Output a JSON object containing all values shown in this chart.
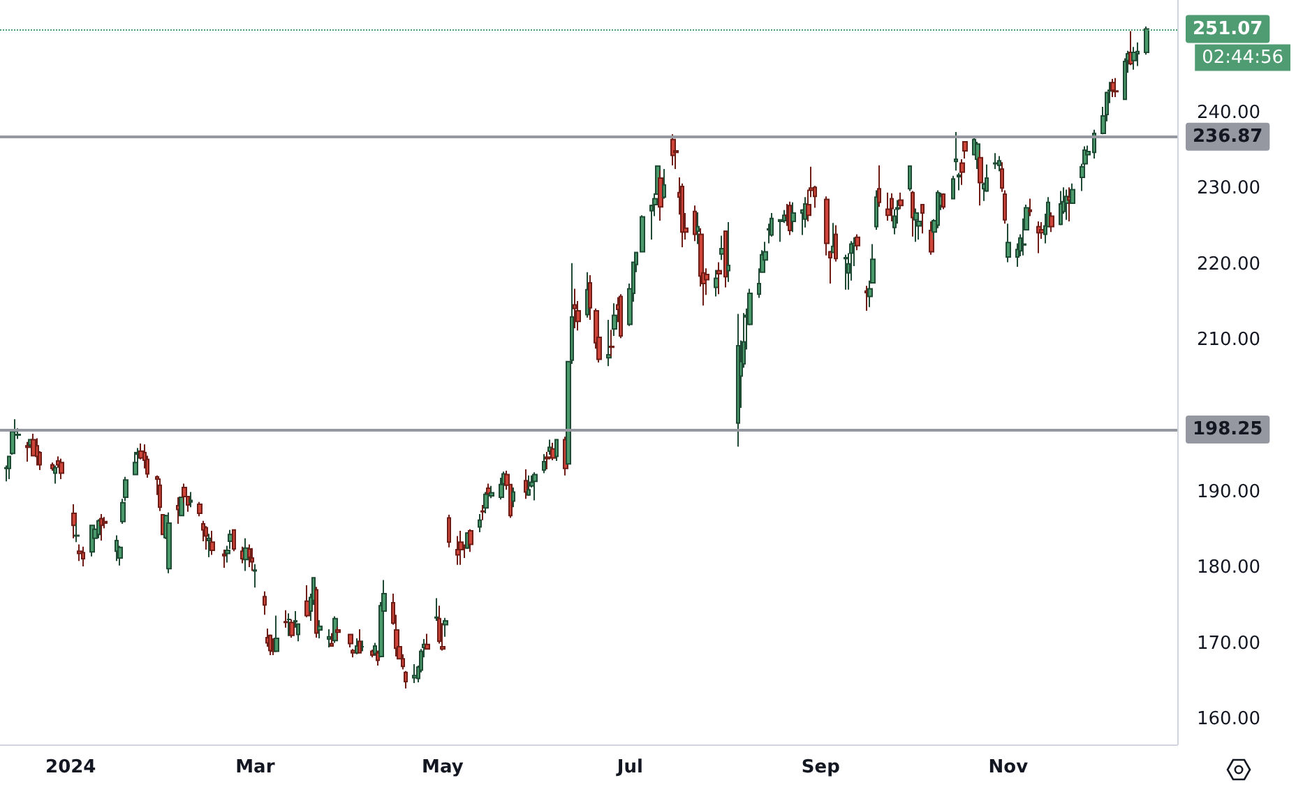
{
  "chart_data": {
    "type": "candlestick",
    "x": [
      "2023-12-11",
      "2023-12-12",
      "2023-12-13",
      "2023-12-14",
      "2023-12-15",
      "2023-12-18",
      "2023-12-19",
      "2023-12-20",
      "2023-12-21",
      "2023-12-22",
      "2023-12-26",
      "2023-12-27",
      "2023-12-28",
      "2023-12-29",
      "2024-01-02",
      "2024-01-03",
      "2024-01-04",
      "2024-01-05",
      "2024-01-08",
      "2024-01-09",
      "2024-01-10",
      "2024-01-11",
      "2024-01-12",
      "2024-01-16",
      "2024-01-17",
      "2024-01-18",
      "2024-01-19",
      "2024-01-22",
      "2024-01-23",
      "2024-01-24",
      "2024-01-25",
      "2024-01-26",
      "2024-01-29",
      "2024-01-30",
      "2024-01-31",
      "2024-02-01",
      "2024-02-02",
      "2024-02-05",
      "2024-02-06",
      "2024-02-07",
      "2024-02-08",
      "2024-02-09",
      "2024-02-12",
      "2024-02-13",
      "2024-02-14",
      "2024-02-15",
      "2024-02-16",
      "2024-02-20",
      "2024-02-21",
      "2024-02-22",
      "2024-02-23",
      "2024-02-26",
      "2024-02-27",
      "2024-02-28",
      "2024-02-29",
      "2024-03-01",
      "2024-03-04",
      "2024-03-05",
      "2024-03-06",
      "2024-03-07",
      "2024-03-08",
      "2024-03-11",
      "2024-03-12",
      "2024-03-13",
      "2024-03-14",
      "2024-03-15",
      "2024-03-18",
      "2024-03-19",
      "2024-03-20",
      "2024-03-21",
      "2024-03-22",
      "2024-03-25",
      "2024-03-26",
      "2024-03-27",
      "2024-03-28",
      "2024-04-01",
      "2024-04-02",
      "2024-04-03",
      "2024-04-04",
      "2024-04-05",
      "2024-04-08",
      "2024-04-09",
      "2024-04-10",
      "2024-04-11",
      "2024-04-12",
      "2024-04-15",
      "2024-04-16",
      "2024-04-17",
      "2024-04-18",
      "2024-04-19",
      "2024-04-22",
      "2024-04-23",
      "2024-04-24",
      "2024-04-25",
      "2024-04-26",
      "2024-04-29",
      "2024-04-30",
      "2024-05-01",
      "2024-05-02",
      "2024-05-03",
      "2024-05-06",
      "2024-05-07",
      "2024-05-08",
      "2024-05-09",
      "2024-05-10",
      "2024-05-13",
      "2024-05-14",
      "2024-05-15",
      "2024-05-16",
      "2024-05-17",
      "2024-05-20",
      "2024-05-21",
      "2024-05-22",
      "2024-05-23",
      "2024-05-24",
      "2024-05-28",
      "2024-05-29",
      "2024-05-30",
      "2024-05-31",
      "2024-06-03",
      "2024-06-04",
      "2024-06-05",
      "2024-06-06",
      "2024-06-07",
      "2024-06-10",
      "2024-06-11",
      "2024-06-12",
      "2024-06-13",
      "2024-06-14",
      "2024-06-17",
      "2024-06-18",
      "2024-06-20",
      "2024-06-21",
      "2024-06-24",
      "2024-06-25",
      "2024-06-26",
      "2024-06-27",
      "2024-06-28",
      "2024-07-01",
      "2024-07-02",
      "2024-07-03",
      "2024-07-05",
      "2024-07-08",
      "2024-07-09",
      "2024-07-10",
      "2024-07-11",
      "2024-07-12",
      "2024-07-15",
      "2024-07-16",
      "2024-07-17",
      "2024-07-18",
      "2024-07-19",
      "2024-07-22",
      "2024-07-23",
      "2024-07-24",
      "2024-07-25",
      "2024-07-26",
      "2024-07-29",
      "2024-07-30",
      "2024-07-31",
      "2024-08-01",
      "2024-08-02",
      "2024-08-05",
      "2024-08-06",
      "2024-08-07",
      "2024-08-08",
      "2024-08-09",
      "2024-08-12",
      "2024-08-13",
      "2024-08-14",
      "2024-08-15",
      "2024-08-16",
      "2024-08-19",
      "2024-08-20",
      "2024-08-21",
      "2024-08-22",
      "2024-08-23",
      "2024-08-26",
      "2024-08-27",
      "2024-08-28",
      "2024-08-29",
      "2024-08-30",
      "2024-09-03",
      "2024-09-04",
      "2024-09-05",
      "2024-09-06",
      "2024-09-09",
      "2024-09-10",
      "2024-09-11",
      "2024-09-12",
      "2024-09-13",
      "2024-09-16",
      "2024-09-17",
      "2024-09-18",
      "2024-09-19",
      "2024-09-20",
      "2024-09-23",
      "2024-09-24",
      "2024-09-25",
      "2024-09-26",
      "2024-09-27",
      "2024-09-30",
      "2024-10-01",
      "2024-10-02",
      "2024-10-03",
      "2024-10-04",
      "2024-10-07",
      "2024-10-08",
      "2024-10-09",
      "2024-10-10",
      "2024-10-11",
      "2024-10-14",
      "2024-10-15",
      "2024-10-16",
      "2024-10-17",
      "2024-10-18",
      "2024-10-21",
      "2024-10-22",
      "2024-10-23",
      "2024-10-24",
      "2024-10-25",
      "2024-10-28",
      "2024-10-29",
      "2024-10-30",
      "2024-10-31",
      "2024-11-01",
      "2024-11-04",
      "2024-11-05",
      "2024-11-06",
      "2024-11-07",
      "2024-11-08",
      "2024-11-11",
      "2024-11-12",
      "2024-11-13",
      "2024-11-14",
      "2024-11-15",
      "2024-11-18",
      "2024-11-19",
      "2024-11-20",
      "2024-11-21",
      "2024-11-22",
      "2024-11-25",
      "2024-11-26",
      "2024-11-27",
      "2024-11-29",
      "2024-12-02",
      "2024-12-03",
      "2024-12-04",
      "2024-12-05",
      "2024-12-06",
      "2024-12-09",
      "2024-12-10",
      "2024-12-11",
      "2024-12-12",
      "2024-12-13",
      "2024-12-16"
    ],
    "ohlc": [
      [
        193.1,
        193.5,
        191.4,
        193.2
      ],
      [
        193.1,
        194.7,
        191.7,
        194.7
      ],
      [
        195.1,
        198.0,
        194.9,
        198.0
      ],
      [
        198.0,
        199.6,
        196.2,
        198.1
      ],
      [
        197.5,
        198.4,
        197.0,
        197.6
      ],
      [
        196.1,
        196.6,
        194.0,
        195.9
      ],
      [
        196.2,
        196.9,
        195.9,
        196.9
      ],
      [
        196.9,
        197.7,
        194.8,
        194.8
      ],
      [
        196.1,
        197.1,
        193.5,
        194.7
      ],
      [
        195.2,
        195.4,
        192.9,
        193.6
      ],
      [
        193.6,
        193.9,
        192.8,
        193.1
      ],
      [
        192.5,
        193.5,
        191.1,
        193.2
      ],
      [
        194.1,
        194.7,
        193.2,
        193.6
      ],
      [
        193.9,
        194.4,
        191.7,
        192.5
      ],
      [
        187.2,
        188.4,
        183.9,
        185.6
      ],
      [
        184.2,
        185.9,
        183.4,
        184.3
      ],
      [
        182.2,
        183.1,
        180.9,
        181.9
      ],
      [
        182.0,
        182.8,
        180.2,
        181.2
      ],
      [
        182.1,
        185.6,
        181.5,
        185.6
      ],
      [
        183.9,
        185.2,
        182.7,
        185.1
      ],
      [
        184.4,
        186.4,
        183.9,
        186.2
      ],
      [
        186.5,
        187.1,
        183.6,
        185.6
      ],
      [
        186.1,
        186.7,
        185.2,
        185.9
      ],
      [
        182.2,
        184.3,
        180.9,
        183.6
      ],
      [
        181.3,
        182.9,
        180.3,
        182.7
      ],
      [
        186.1,
        189.1,
        185.8,
        188.6
      ],
      [
        189.3,
        192.0,
        188.8,
        191.6
      ],
      [
        192.3,
        195.3,
        192.3,
        193.9
      ],
      [
        195.0,
        195.8,
        193.8,
        195.2
      ],
      [
        195.4,
        196.4,
        194.3,
        194.5
      ],
      [
        195.2,
        196.3,
        193.1,
        194.2
      ],
      [
        194.3,
        194.8,
        191.9,
        192.4
      ],
      [
        192.0,
        192.2,
        189.6,
        191.7
      ],
      [
        190.9,
        191.8,
        187.5,
        188.0
      ],
      [
        187.0,
        187.1,
        184.4,
        184.4
      ],
      [
        184.0,
        187.0,
        183.8,
        186.9
      ],
      [
        179.9,
        187.3,
        179.3,
        185.9
      ],
      [
        188.2,
        189.3,
        185.8,
        187.7
      ],
      [
        186.9,
        189.3,
        186.8,
        189.3
      ],
      [
        190.6,
        191.1,
        188.6,
        189.4
      ],
      [
        189.4,
        189.5,
        187.4,
        188.3
      ],
      [
        188.7,
        190.0,
        188.0,
        188.9
      ],
      [
        188.4,
        188.7,
        186.8,
        187.2
      ],
      [
        185.8,
        186.2,
        183.5,
        185.0
      ],
      [
        185.3,
        185.5,
        182.4,
        184.2
      ],
      [
        183.6,
        184.5,
        181.4,
        183.9
      ],
      [
        183.4,
        184.9,
        181.7,
        182.3
      ],
      [
        181.8,
        182.4,
        180.0,
        181.6
      ],
      [
        181.9,
        182.9,
        180.7,
        182.3
      ],
      [
        183.5,
        185.0,
        182.5,
        184.4
      ],
      [
        185.0,
        185.0,
        182.2,
        182.5
      ],
      [
        182.2,
        182.8,
        180.6,
        181.2
      ],
      [
        181.1,
        183.9,
        179.6,
        182.6
      ],
      [
        182.5,
        183.1,
        180.1,
        181.4
      ],
      [
        181.3,
        182.6,
        179.6,
        180.8
      ],
      [
        179.6,
        180.5,
        177.4,
        179.7
      ],
      [
        176.2,
        176.9,
        173.8,
        175.1
      ],
      [
        170.8,
        172.0,
        169.6,
        170.1
      ],
      [
        171.1,
        171.2,
        168.5,
        169.1
      ],
      [
        169.2,
        170.7,
        168.5,
        169.0
      ],
      [
        169.0,
        173.7,
        168.9,
        170.7
      ],
      [
        172.9,
        174.4,
        172.1,
        172.8
      ],
      [
        173.2,
        174.0,
        171.0,
        173.2
      ],
      [
        172.8,
        173.2,
        170.8,
        171.1
      ],
      [
        172.9,
        174.3,
        172.1,
        173.0
      ],
      [
        171.2,
        172.6,
        170.3,
        172.6
      ],
      [
        175.6,
        177.7,
        173.5,
        173.7
      ],
      [
        174.3,
        176.6,
        173.0,
        176.1
      ],
      [
        175.7,
        178.7,
        175.1,
        178.7
      ],
      [
        177.1,
        177.5,
        170.8,
        171.4
      ],
      [
        171.8,
        173.1,
        170.7,
        172.3
      ],
      [
        170.6,
        171.9,
        169.5,
        170.9
      ],
      [
        170.0,
        171.4,
        169.6,
        169.7
      ],
      [
        170.4,
        173.6,
        170.1,
        173.3
      ],
      [
        171.8,
        172.2,
        170.5,
        171.5
      ],
      [
        171.2,
        171.3,
        169.5,
        170.0
      ],
      [
        169.1,
        169.3,
        168.2,
        168.8
      ],
      [
        168.8,
        170.7,
        168.6,
        169.7
      ],
      [
        170.3,
        171.9,
        168.8,
        168.8
      ],
      [
        169.6,
        170.4,
        169.0,
        169.6
      ],
      [
        169.0,
        169.2,
        168.2,
        168.5
      ],
      [
        168.7,
        170.1,
        168.4,
        169.7
      ],
      [
        168.8,
        169.1,
        167.1,
        167.8
      ],
      [
        168.3,
        175.5,
        168.2,
        175.0
      ],
      [
        174.3,
        178.4,
        174.2,
        176.6
      ],
      [
        175.4,
        176.6,
        172.5,
        172.7
      ],
      [
        171.8,
        173.8,
        168.3,
        169.4
      ],
      [
        169.6,
        170.7,
        168.0,
        168.0
      ],
      [
        168.0,
        168.6,
        166.6,
        167.0
      ],
      [
        166.2,
        166.4,
        164.1,
        165.0
      ],
      [
        165.5,
        167.3,
        164.8,
        165.8
      ],
      [
        165.4,
        167.1,
        164.9,
        166.9
      ],
      [
        166.5,
        169.3,
        166.2,
        169.0
      ],
      [
        169.5,
        170.6,
        168.2,
        169.9
      ],
      [
        169.9,
        171.3,
        169.2,
        169.3
      ],
      [
        173.4,
        176.0,
        173.0,
        173.5
      ],
      [
        173.3,
        175.0,
        170.0,
        170.3
      ],
      [
        169.6,
        172.7,
        169.1,
        169.3
      ],
      [
        172.5,
        173.4,
        170.9,
        173.0
      ],
      [
        186.6,
        187.0,
        182.7,
        183.4
      ],
      [
        182.4,
        184.2,
        180.4,
        181.7
      ],
      [
        183.4,
        184.9,
        180.4,
        182.4
      ],
      [
        182.9,
        183.1,
        181.3,
        182.7
      ],
      [
        182.6,
        184.7,
        182.5,
        184.6
      ],
      [
        184.9,
        185.1,
        182.1,
        183.1
      ],
      [
        185.4,
        187.1,
        184.7,
        186.3
      ],
      [
        187.5,
        188.3,
        186.3,
        187.4
      ],
      [
        187.9,
        190.0,
        187.2,
        189.7
      ],
      [
        190.5,
        191.1,
        189.7,
        189.8
      ],
      [
        189.5,
        190.8,
        189.2,
        189.9
      ],
      [
        189.3,
        191.9,
        189.0,
        191.0
      ],
      [
        191.1,
        192.7,
        190.9,
        192.4
      ],
      [
        192.3,
        192.8,
        190.3,
        190.9
      ],
      [
        191.0,
        191.0,
        186.6,
        186.9
      ],
      [
        188.8,
        190.6,
        188.0,
        190.0
      ],
      [
        191.5,
        193.0,
        189.1,
        190.0
      ],
      [
        189.6,
        192.2,
        189.5,
        190.3
      ],
      [
        190.8,
        192.2,
        190.6,
        191.3
      ],
      [
        191.4,
        192.6,
        188.9,
        192.3
      ],
      [
        192.9,
        195.0,
        192.5,
        194.0
      ],
      [
        194.6,
        195.3,
        193.0,
        194.4
      ],
      [
        195.4,
        196.9,
        194.9,
        195.9
      ],
      [
        195.7,
        196.5,
        194.2,
        194.5
      ],
      [
        194.7,
        196.9,
        194.1,
        196.9
      ],
      [
        196.9,
        197.3,
        192.2,
        193.1
      ],
      [
        193.7,
        207.2,
        193.6,
        207.2
      ],
      [
        207.4,
        220.2,
        206.9,
        213.1
      ],
      [
        214.7,
        216.8,
        211.6,
        214.2
      ],
      [
        213.9,
        215.2,
        211.3,
        212.5
      ],
      [
        213.4,
        219.0,
        213.0,
        216.7
      ],
      [
        217.6,
        218.6,
        212.7,
        214.3
      ],
      [
        213.9,
        214.2,
        208.9,
        209.7
      ],
      [
        210.4,
        211.9,
        207.1,
        207.5
      ],
      [
        207.7,
        212.7,
        206.6,
        208.1
      ],
      [
        209.2,
        211.4,
        207.9,
        209.1
      ],
      [
        211.5,
        214.9,
        210.6,
        213.3
      ],
      [
        214.7,
        215.7,
        212.4,
        214.1
      ],
      [
        215.8,
        216.1,
        210.3,
        210.6
      ],
      [
        212.1,
        217.5,
        211.9,
        216.8
      ],
      [
        216.2,
        220.4,
        215.1,
        220.3
      ],
      [
        220.0,
        221.6,
        219.0,
        221.6
      ],
      [
        221.7,
        226.5,
        221.6,
        226.3
      ],
      [
        227.1,
        227.9,
        223.3,
        227.8
      ],
      [
        227.9,
        229.4,
        226.4,
        228.7
      ],
      [
        229.3,
        233.1,
        229.3,
        233.0
      ],
      [
        231.4,
        232.4,
        225.8,
        227.6
      ],
      [
        228.9,
        232.6,
        228.7,
        230.5
      ],
      [
        236.5,
        237.2,
        233.1,
        234.4
      ],
      [
        235.0,
        236.3,
        232.6,
        234.8
      ],
      [
        229.5,
        231.5,
        226.6,
        228.9
      ],
      [
        230.3,
        230.7,
        222.3,
        224.3
      ],
      [
        224.8,
        226.8,
        223.3,
        224.3
      ],
      [
        227.0,
        227.8,
        223.1,
        224.0
      ],
      [
        224.4,
        226.9,
        222.7,
        225.0
      ],
      [
        224.0,
        224.8,
        217.1,
        218.5
      ],
      [
        218.9,
        220.9,
        214.6,
        217.5
      ],
      [
        218.7,
        219.5,
        216.0,
        218.0
      ],
      [
        217.0,
        219.3,
        215.8,
        218.2
      ],
      [
        219.2,
        220.3,
        216.1,
        218.8
      ],
      [
        221.4,
        223.8,
        220.6,
        222.1
      ],
      [
        224.4,
        224.5,
        217.0,
        218.4
      ],
      [
        219.2,
        225.6,
        217.7,
        219.9
      ],
      [
        199.1,
        213.5,
        196.0,
        209.3
      ],
      [
        205.3,
        210.0,
        201.1,
        207.2
      ],
      [
        206.9,
        213.6,
        206.4,
        209.8
      ],
      [
        213.1,
        214.2,
        208.8,
        213.3
      ],
      [
        212.1,
        216.8,
        212.0,
        216.2
      ],
      [
        216.1,
        219.5,
        215.6,
        217.5
      ],
      [
        219.0,
        221.9,
        219.0,
        221.3
      ],
      [
        220.6,
        223.0,
        219.7,
        221.7
      ],
      [
        224.6,
        225.4,
        222.8,
        224.7
      ],
      [
        223.9,
        226.8,
        223.7,
        226.1
      ],
      [
        225.7,
        226.0,
        223.0,
        225.9
      ],
      [
        225.8,
        227.2,
        225.5,
        226.5
      ],
      [
        226.5,
        228.0,
        225.1,
        226.4
      ],
      [
        227.8,
        228.3,
        223.9,
        224.5
      ],
      [
        225.7,
        228.2,
        224.3,
        226.8
      ],
      [
        226.8,
        227.3,
        223.9,
        227.2
      ],
      [
        226.0,
        228.9,
        224.9,
        228.0
      ],
      [
        227.9,
        229.9,
        225.7,
        226.5
      ],
      [
        230.1,
        232.9,
        228.9,
        229.8
      ],
      [
        230.2,
        230.4,
        227.5,
        229.0
      ],
      [
        228.6,
        229.0,
        221.2,
        222.8
      ],
      [
        221.7,
        221.8,
        217.5,
        220.9
      ],
      [
        221.6,
        225.5,
        221.5,
        222.4
      ],
      [
        224.0,
        225.2,
        220.4,
        220.8
      ],
      [
        220.8,
        221.3,
        216.7,
        220.9
      ],
      [
        218.9,
        221.5,
        216.7,
        220.1
      ],
      [
        221.5,
        223.1,
        217.9,
        222.7
      ],
      [
        222.5,
        223.6,
        219.8,
        222.8
      ],
      [
        223.6,
        224.0,
        221.9,
        222.5
      ],
      [
        216.5,
        217.2,
        213.9,
        216.3
      ],
      [
        215.8,
        217.9,
        214.4,
        216.8
      ],
      [
        217.6,
        222.7,
        217.5,
        220.7
      ],
      [
        225.0,
        229.8,
        224.6,
        228.9
      ],
      [
        230.0,
        233.1,
        227.6,
        228.2
      ],
      [
        227.3,
        229.5,
        225.8,
        226.5
      ],
      [
        228.7,
        229.4,
        225.7,
        227.4
      ],
      [
        224.9,
        227.3,
        224.0,
        226.4
      ],
      [
        227.3,
        228.5,
        225.4,
        227.5
      ],
      [
        228.5,
        229.5,
        227.3,
        227.8
      ],
      [
        230.0,
        233.0,
        229.7,
        233.0
      ],
      [
        229.5,
        229.7,
        223.7,
        226.2
      ],
      [
        225.9,
        227.4,
        223.0,
        226.8
      ],
      [
        225.1,
        226.8,
        223.3,
        225.7
      ],
      [
        227.9,
        228.0,
        224.1,
        226.8
      ],
      [
        224.5,
        225.7,
        221.3,
        221.7
      ],
      [
        224.3,
        226.0,
        223.3,
        225.8
      ],
      [
        225.2,
        229.8,
        224.8,
        229.5
      ],
      [
        227.8,
        229.5,
        227.2,
        229.0
      ],
      [
        229.3,
        229.4,
        227.3,
        227.6
      ],
      [
        228.7,
        231.7,
        228.6,
        231.3
      ],
      [
        233.6,
        237.5,
        232.4,
        233.9
      ],
      [
        231.6,
        232.1,
        229.8,
        231.8
      ],
      [
        233.4,
        233.9,
        230.5,
        232.2
      ],
      [
        236.2,
        236.2,
        234.0,
        235.0
      ],
      [
        234.5,
        236.9,
        234.5,
        236.5
      ],
      [
        233.9,
        236.2,
        232.6,
        235.9
      ],
      [
        234.1,
        235.1,
        227.8,
        230.8
      ],
      [
        230.0,
        230.8,
        228.4,
        230.6
      ],
      [
        229.7,
        233.2,
        229.6,
        231.4
      ],
      [
        233.3,
        234.7,
        232.6,
        233.4
      ],
      [
        233.1,
        234.3,
        232.3,
        233.7
      ],
      [
        232.6,
        233.5,
        229.6,
        230.1
      ],
      [
        229.3,
        229.8,
        225.4,
        225.9
      ],
      [
        221.0,
        225.4,
        220.3,
        222.9
      ],
      [
        221.0,
        222.8,
        219.7,
        222.0
      ],
      [
        221.8,
        224.0,
        221.1,
        223.5
      ],
      [
        222.6,
        226.1,
        221.2,
        222.7
      ],
      [
        224.6,
        227.9,
        224.6,
        227.5
      ],
      [
        227.2,
        228.7,
        226.4,
        227.0
      ],
      [
        225.0,
        225.7,
        221.5,
        224.2
      ],
      [
        224.6,
        225.6,
        223.4,
        224.2
      ],
      [
        224.0,
        226.7,
        222.8,
        225.1
      ],
      [
        225.0,
        228.9,
        225.0,
        228.2
      ],
      [
        226.4,
        226.9,
        224.3,
        225.0
      ],
      [
        225.3,
        229.7,
        225.2,
        228.0
      ],
      [
        227.0,
        230.2,
        226.7,
        228.3
      ],
      [
        228.1,
        229.9,
        225.9,
        229.0
      ],
      [
        228.9,
        230.2,
        225.7,
        228.5
      ],
      [
        228.1,
        230.7,
        228.1,
        229.9
      ],
      [
        231.5,
        233.3,
        229.7,
        232.9
      ],
      [
        233.3,
        235.6,
        233.0,
        235.1
      ],
      [
        234.5,
        235.7,
        233.8,
        234.9
      ],
      [
        234.8,
        237.8,
        234.0,
        237.3
      ],
      [
        237.3,
        240.8,
        237.2,
        239.6
      ],
      [
        239.8,
        242.8,
        238.9,
        242.7
      ],
      [
        242.9,
        244.1,
        241.3,
        243.0
      ],
      [
        244.0,
        244.5,
        242.1,
        243.0
      ],
      [
        242.9,
        244.6,
        242.1,
        242.8
      ],
      [
        241.8,
        247.2,
        241.8,
        246.8
      ],
      [
        246.9,
        248.2,
        245.3,
        247.8
      ],
      [
        248.0,
        250.8,
        246.3,
        246.5
      ],
      [
        246.9,
        248.7,
        245.7,
        248.0
      ],
      [
        247.8,
        249.3,
        246.2,
        248.1
      ],
      [
        248.0,
        251.4,
        247.7,
        251.07
      ]
    ],
    "xlim": [
      "2023-12-09",
      "2024-12-26"
    ],
    "xticks": [
      {
        "value": "2024-01-01",
        "label": "2024"
      },
      {
        "value": "2024-03-01",
        "label": "Mar"
      },
      {
        "value": "2024-05-01",
        "label": "May"
      },
      {
        "value": "2024-07-01",
        "label": "Jul"
      },
      {
        "value": "2024-09-01",
        "label": "Sep"
      },
      {
        "value": "2024-11-01",
        "label": "Nov"
      }
    ],
    "ylim": [
      156.7,
      254.9
    ],
    "yticks": [
      {
        "value": 160,
        "label": "160.00"
      },
      {
        "value": 170,
        "label": "170.00"
      },
      {
        "value": 180,
        "label": "180.00"
      },
      {
        "value": 190,
        "label": "190.00"
      },
      {
        "value": 210,
        "label": "210.00"
      },
      {
        "value": 220,
        "label": "220.00"
      },
      {
        "value": 230,
        "label": "230.00"
      },
      {
        "value": 240,
        "label": "240.00"
      }
    ],
    "ref_lines": [
      {
        "axis": "y",
        "value": 251.07,
        "label": "251.07",
        "color": "#4f9c72",
        "line_style": "dotted"
      },
      {
        "axis": "y",
        "value": 236.87,
        "label": "236.87",
        "color": "#9598a1",
        "line_style": "solid"
      },
      {
        "axis": "y",
        "value": 198.25,
        "label": "198.25",
        "color": "#9598a1",
        "line_style": "solid"
      }
    ],
    "annotations": [
      "02:44:56"
    ],
    "grid": false
  }
}
